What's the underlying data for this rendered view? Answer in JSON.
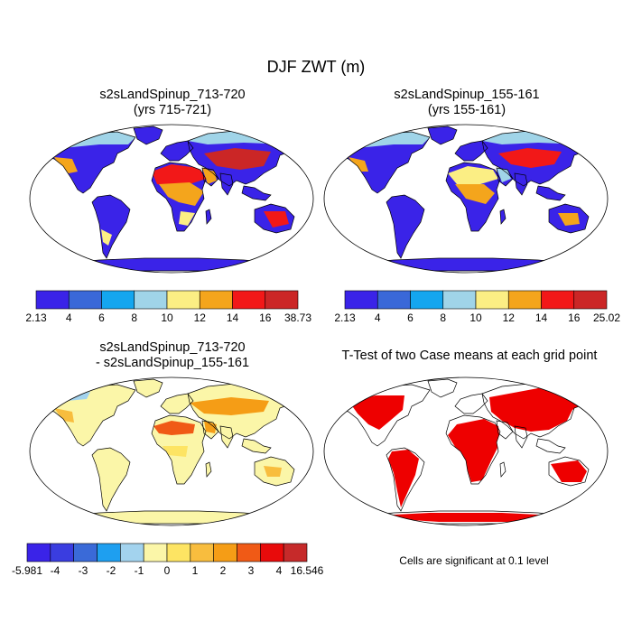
{
  "figure": {
    "title": "DJF ZWT (m)"
  },
  "panels": [
    {
      "id": "p1",
      "title_line1": "s2sLandSpinup_713-720",
      "title_line2": "(yrs 715-721)",
      "style": "field_a"
    },
    {
      "id": "p2",
      "title_line1": "s2sLandSpinup_155-161",
      "title_line2": "(yrs 155-161)",
      "style": "field_b"
    },
    {
      "id": "p3",
      "title_line1": "s2sLandSpinup_713-720",
      "title_line2": "- s2sLandSpinup_155-161",
      "style": "diff"
    },
    {
      "id": "p4",
      "title_line1": "T-Test of two Case means at each grid point",
      "title_line2": "",
      "style": "ttest"
    }
  ],
  "colorbars": [
    {
      "id": "cb1",
      "colors": [
        "#3a23e8",
        "#3a68d8",
        "#14a6ef",
        "#a0d4e8",
        "#fbee84",
        "#f4a51c",
        "#f21818",
        "#cb2626"
      ],
      "labels": [
        "2.13",
        "4",
        "6",
        "8",
        "10",
        "12",
        "14",
        "16",
        "38.73"
      ]
    },
    {
      "id": "cb2",
      "colors": [
        "#3a23e8",
        "#3a68d8",
        "#14a6ef",
        "#a0d4e8",
        "#fbee84",
        "#f4a51c",
        "#f21818",
        "#cb2626"
      ],
      "labels": [
        "2.13",
        "4",
        "6",
        "8",
        "10",
        "12",
        "14",
        "16",
        "25.02"
      ]
    },
    {
      "id": "cb3",
      "colors": [
        "#3a23e8",
        "#3a3de0",
        "#3a6ad8",
        "#1e9ff0",
        "#a3d3ee",
        "#fbf6a8",
        "#fde463",
        "#f8bd3e",
        "#f59d16",
        "#f05a16",
        "#e80b0b",
        "#c62a2a"
      ],
      "labels": [
        "-5.981",
        "-4",
        "-3",
        "-2",
        "-1",
        "0",
        "1",
        "2",
        "3",
        "4",
        "16.546"
      ]
    }
  ],
  "significance_note": "Cells are significant at 0.1 level"
}
